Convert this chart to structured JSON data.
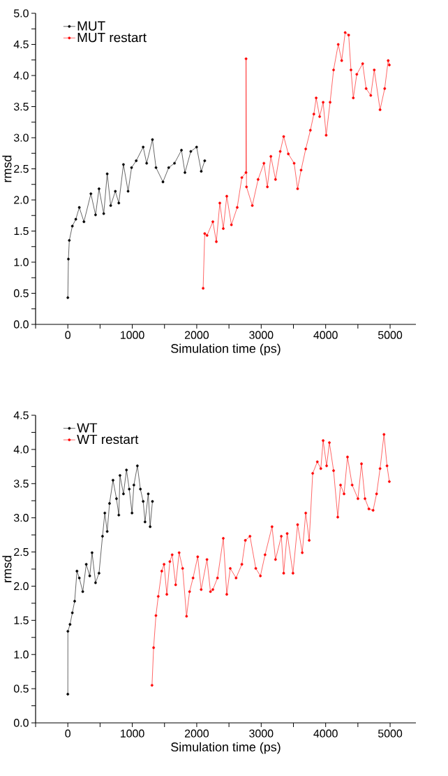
{
  "chart_data": [
    {
      "type": "line",
      "xlabel": "Simulation time (ps)",
      "ylabel": "rmsd",
      "xlim": [
        -500,
        5400
      ],
      "ylim": [
        0,
        5
      ],
      "xticks": [
        {
          "value": -500,
          "label": null
        },
        0,
        {
          "value": 500,
          "label": null
        },
        1000,
        {
          "value": 1500,
          "label": null
        },
        2000,
        {
          "value": 2500,
          "label": null
        },
        3000,
        {
          "value": 3500,
          "label": null
        },
        4000,
        {
          "value": 4500,
          "label": null
        },
        5000
      ],
      "yticks": [
        {
          "value": 0,
          "label": "0.0"
        },
        {
          "value": 0.25,
          "label": null
        },
        {
          "value": 0.5,
          "label": "0.5"
        },
        {
          "value": 0.75,
          "label": null
        },
        {
          "value": 1,
          "label": "1.0"
        },
        {
          "value": 1.25,
          "label": null
        },
        {
          "value": 1.5,
          "label": "1.5"
        },
        {
          "value": 1.75,
          "label": null
        },
        {
          "value": 2,
          "label": "2.0"
        },
        {
          "value": 2.25,
          "label": null
        },
        {
          "value": 2.5,
          "label": "2.5"
        },
        {
          "value": 2.75,
          "label": null
        },
        {
          "value": 3,
          "label": "3.0"
        },
        {
          "value": 3.25,
          "label": null
        },
        {
          "value": 3.5,
          "label": "3.5"
        },
        {
          "value": 3.75,
          "label": null
        },
        {
          "value": 4,
          "label": "4.0"
        },
        {
          "value": 4.25,
          "label": null
        },
        {
          "value": 4.5,
          "label": "4.5"
        },
        {
          "value": 4.75,
          "label": null
        },
        {
          "value": 5,
          "label": "5.0"
        }
      ],
      "legend": "top left",
      "marker": "circle",
      "grid": false,
      "series": [
        {
          "name": "MUT",
          "color": "#000000",
          "x": [
            0,
            9,
            23,
            70,
            124,
            178,
            250,
            358,
            430,
            484,
            557,
            611,
            665,
            737,
            791,
            863,
            935,
            989,
            1061,
            1169,
            1223,
            1313,
            1368,
            1476,
            1565,
            1655,
            1763,
            1817,
            1908,
            1998,
            2070,
            2124
          ],
          "values": [
            0.43,
            1.05,
            1.35,
            1.58,
            1.69,
            1.88,
            1.65,
            2.1,
            1.76,
            2.18,
            1.78,
            2.42,
            1.91,
            2.14,
            1.95,
            2.57,
            2.14,
            2.52,
            2.63,
            2.85,
            2.59,
            2.97,
            2.52,
            2.29,
            2.52,
            2.59,
            2.8,
            2.44,
            2.78,
            2.85,
            2.46,
            2.63
          ]
        },
        {
          "name": "MUT restart",
          "color": "#ff0000",
          "x": [
            2099,
            2124,
            2160,
            2250,
            2304,
            2358,
            2412,
            2466,
            2538,
            2628,
            2700,
            2764,
            2765,
            2772,
            2862,
            2952,
            3042,
            3096,
            3150,
            3222,
            3295,
            3349,
            3421,
            3511,
            3565,
            3619,
            3691,
            3763,
            3817,
            3853,
            3907,
            3961,
            4008,
            4069,
            4123,
            4195,
            4249,
            4303,
            4357,
            4393,
            4429,
            4483,
            4574,
            4628,
            4700,
            4754,
            4844,
            4916,
            4970,
            4988
          ],
          "values": [
            0.58,
            1.46,
            1.43,
            1.65,
            1.33,
            1.95,
            1.54,
            2.06,
            1.6,
            1.88,
            2.36,
            2.44,
            4.27,
            2.21,
            1.91,
            2.33,
            2.59,
            2.21,
            2.7,
            2.33,
            2.78,
            3.02,
            2.74,
            2.59,
            2.18,
            2.48,
            2.82,
            3.12,
            3.38,
            3.64,
            3.34,
            3.57,
            3.04,
            3.57,
            4.09,
            4.5,
            4.24,
            4.69,
            4.65,
            4.09,
            3.64,
            4.02,
            4.19,
            3.79,
            3.68,
            4.09,
            3.45,
            3.79,
            4.24,
            4.17
          ]
        }
      ]
    },
    {
      "type": "line",
      "xlabel": "Simulation time (ps)",
      "ylabel": "rmsd",
      "xlim": [
        -500,
        5400
      ],
      "ylim": [
        0,
        4.5
      ],
      "xticks": [
        {
          "value": -500,
          "label": null
        },
        0,
        {
          "value": 500,
          "label": null
        },
        1000,
        {
          "value": 1500,
          "label": null
        },
        2000,
        {
          "value": 2500,
          "label": null
        },
        3000,
        {
          "value": 3500,
          "label": null
        },
        4000,
        {
          "value": 4500,
          "label": null
        },
        5000
      ],
      "yticks": [
        {
          "value": 0,
          "label": "0.0"
        },
        {
          "value": 0.25,
          "label": null
        },
        {
          "value": 0.5,
          "label": "0.5"
        },
        {
          "value": 0.75,
          "label": null
        },
        {
          "value": 1,
          "label": "1.0"
        },
        {
          "value": 1.25,
          "label": null
        },
        {
          "value": 1.5,
          "label": "1.5"
        },
        {
          "value": 1.75,
          "label": null
        },
        {
          "value": 2,
          "label": "2.0"
        },
        {
          "value": 2.25,
          "label": null
        },
        {
          "value": 2.5,
          "label": "2.5"
        },
        {
          "value": 2.75,
          "label": null
        },
        {
          "value": 3,
          "label": "3.0"
        },
        {
          "value": 3.25,
          "label": null
        },
        {
          "value": 3.5,
          "label": "3.5"
        },
        {
          "value": 3.75,
          "label": null
        },
        {
          "value": 4,
          "label": "4.0"
        },
        {
          "value": 4.25,
          "label": null
        },
        {
          "value": 4.5,
          "label": "4.5"
        }
      ],
      "legend": "top left",
      "marker": "circle",
      "grid": false,
      "series": [
        {
          "name": "WT",
          "color": "#000000",
          "x": [
            0,
            1,
            34,
            70,
            106,
            142,
            178,
            232,
            286,
            340,
            376,
            430,
            484,
            538,
            574,
            611,
            647,
            701,
            755,
            791,
            809,
            863,
            910,
            953,
            996,
            1025,
            1079,
            1126,
            1169,
            1198,
            1248,
            1277,
            1313
          ],
          "values": [
            0.42,
            1.34,
            1.44,
            1.61,
            1.78,
            2.22,
            2.12,
            1.92,
            2.32,
            2.15,
            2.49,
            2.05,
            2.19,
            2.73,
            3.07,
            2.8,
            3.21,
            3.55,
            3.28,
            3.04,
            3.62,
            3.35,
            3.7,
            3.42,
            3.07,
            3.48,
            3.76,
            3.42,
            3.24,
            2.94,
            3.35,
            2.87,
            3.24
          ]
        },
        {
          "name": "WT restart",
          "color": "#ff0000",
          "x": [
            1306,
            1331,
            1367,
            1403,
            1457,
            1493,
            1536,
            1583,
            1619,
            1673,
            1727,
            1781,
            1842,
            1889,
            1943,
            2015,
            2069,
            2159,
            2213,
            2250,
            2322,
            2412,
            2466,
            2520,
            2610,
            2700,
            2754,
            2826,
            2916,
            2988,
            3060,
            3168,
            3222,
            3312,
            3349,
            3403,
            3493,
            3565,
            3637,
            3691,
            3745,
            3799,
            3871,
            3925,
            3961,
            4015,
            4058,
            4123,
            4188,
            4231,
            4285,
            4339,
            4411,
            4501,
            4556,
            4610,
            4671,
            4736,
            4790,
            4844,
            4905,
            4952,
            4988
          ],
          "values": [
            0.55,
            1.1,
            1.57,
            1.85,
            2.22,
            2.32,
            1.88,
            2.36,
            2.46,
            2.02,
            2.49,
            2.26,
            1.56,
            1.92,
            2.12,
            2.43,
            1.95,
            2.39,
            1.92,
            1.95,
            2.12,
            2.7,
            1.88,
            2.26,
            2.12,
            2.32,
            2.67,
            2.73,
            2.26,
            2.15,
            2.46,
            2.87,
            2.39,
            2.73,
            2.19,
            2.77,
            2.19,
            2.9,
            2.49,
            3.07,
            2.67,
            3.65,
            3.82,
            3.72,
            4.13,
            3.76,
            4.1,
            3.69,
            3.01,
            3.48,
            3.35,
            3.89,
            3.48,
            3.28,
            3.79,
            3.28,
            3.13,
            3.11,
            3.35,
            3.72,
            4.22,
            3.76,
            3.53
          ]
        }
      ]
    }
  ]
}
